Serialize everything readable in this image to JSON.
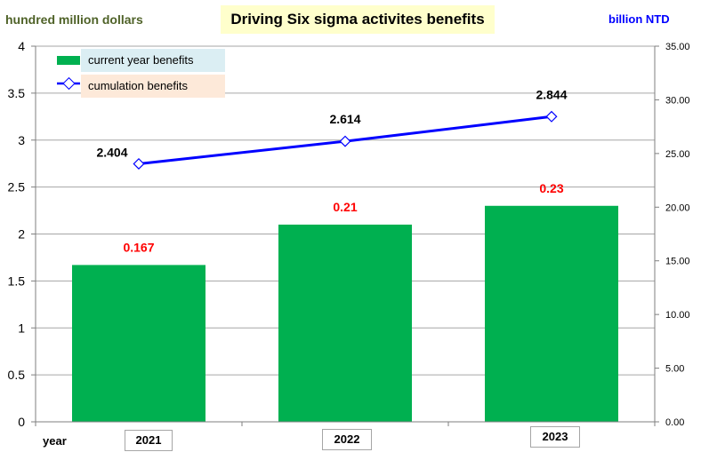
{
  "title": "Driving Six sigma activites benefits",
  "left_unit": "hundred million dollars",
  "right_unit": "billion NTD",
  "x_axis_label": "year",
  "legend": {
    "bar_label": "current year benefits",
    "line_label": "cumulation benefits"
  },
  "chart_data": {
    "type": "bar",
    "categories": [
      "2021",
      "2022",
      "2023"
    ],
    "series": [
      {
        "name": "current year benefits",
        "type": "bar",
        "axis": "left",
        "values": [
          1.67,
          2.1,
          2.3
        ],
        "labels": [
          "0.167",
          "0.21",
          "0.23"
        ]
      },
      {
        "name": "cumulation benefits",
        "type": "line",
        "axis": "right",
        "values": [
          24.04,
          26.14,
          28.44
        ],
        "labels": [
          "2.404",
          "2.614",
          "2.844"
        ]
      }
    ],
    "left_axis": {
      "min": 0,
      "max": 4,
      "ticks": [
        "0",
        "0.5",
        "1",
        "1.5",
        "2",
        "2.5",
        "3",
        "3.5",
        "4"
      ]
    },
    "right_axis": {
      "min": 0,
      "max": 35,
      "ticks": [
        "0.00",
        "5.00",
        "10.00",
        "15.00",
        "20.00",
        "25.00",
        "30.00",
        "35.00"
      ]
    },
    "grid": true,
    "legend_position": "top-left",
    "colors": {
      "bar": "#00b050",
      "line": "#0000ff",
      "bar_label": "#ff0000",
      "line_label": "#000000"
    }
  }
}
